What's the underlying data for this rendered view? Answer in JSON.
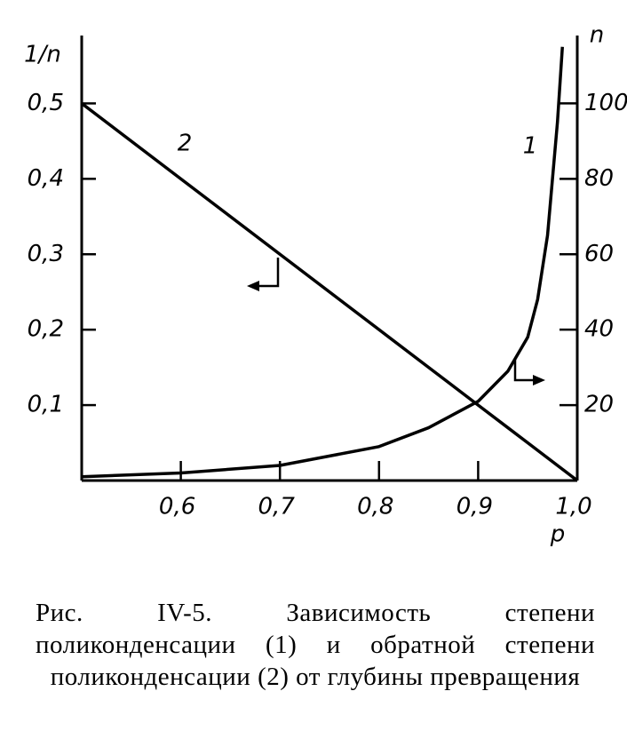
{
  "chart_data": {
    "type": "line",
    "ylabel": "1/n",
    "y2label": "n",
    "xlabel": "p",
    "x": [
      0.5,
      0.6,
      0.7,
      0.8,
      0.85,
      0.9,
      0.93,
      0.95,
      0.96,
      0.97,
      0.98,
      0.985,
      1.0
    ],
    "series": [
      {
        "name": "1",
        "color": "#000000",
        "axis": "y2",
        "values": [
          1,
          2,
          4,
          9,
          14,
          21,
          29,
          38,
          48,
          65,
          95,
          115,
          null
        ]
      },
      {
        "name": "2",
        "color": "#000000",
        "values": [
          0.5,
          0.4,
          0.3,
          0.2,
          0.15,
          0.1,
          0.07,
          0.05,
          0.04,
          0.03,
          0.02,
          0.015,
          0
        ]
      }
    ],
    "xlim": [
      0.5,
      1.0
    ],
    "xticks": [
      {
        "value": 0.6,
        "label": "0,6"
      },
      {
        "value": 0.7,
        "label": "0,7"
      },
      {
        "value": 0.8,
        "label": "0,8"
      },
      {
        "value": 0.9,
        "label": "0,9"
      },
      {
        "value": 1.0,
        "label": "1,0"
      }
    ],
    "ylim": [
      0,
      0.59
    ],
    "yticks": [
      {
        "value": 0.1,
        "label": "0,1"
      },
      {
        "value": 0.2,
        "label": "0,2"
      },
      {
        "value": 0.3,
        "label": "0,3"
      },
      {
        "value": 0.4,
        "label": "0,4"
      },
      {
        "value": 0.5,
        "label": "0,5"
      }
    ],
    "y2lim": [
      0,
      118
    ],
    "y2ticks": [
      20,
      40,
      60,
      80,
      100
    ],
    "caption": "Рис. IV-5. Зависимость степени поликонденсации (1) и обратной степени поликонденсации (2) от глубины превращения"
  }
}
